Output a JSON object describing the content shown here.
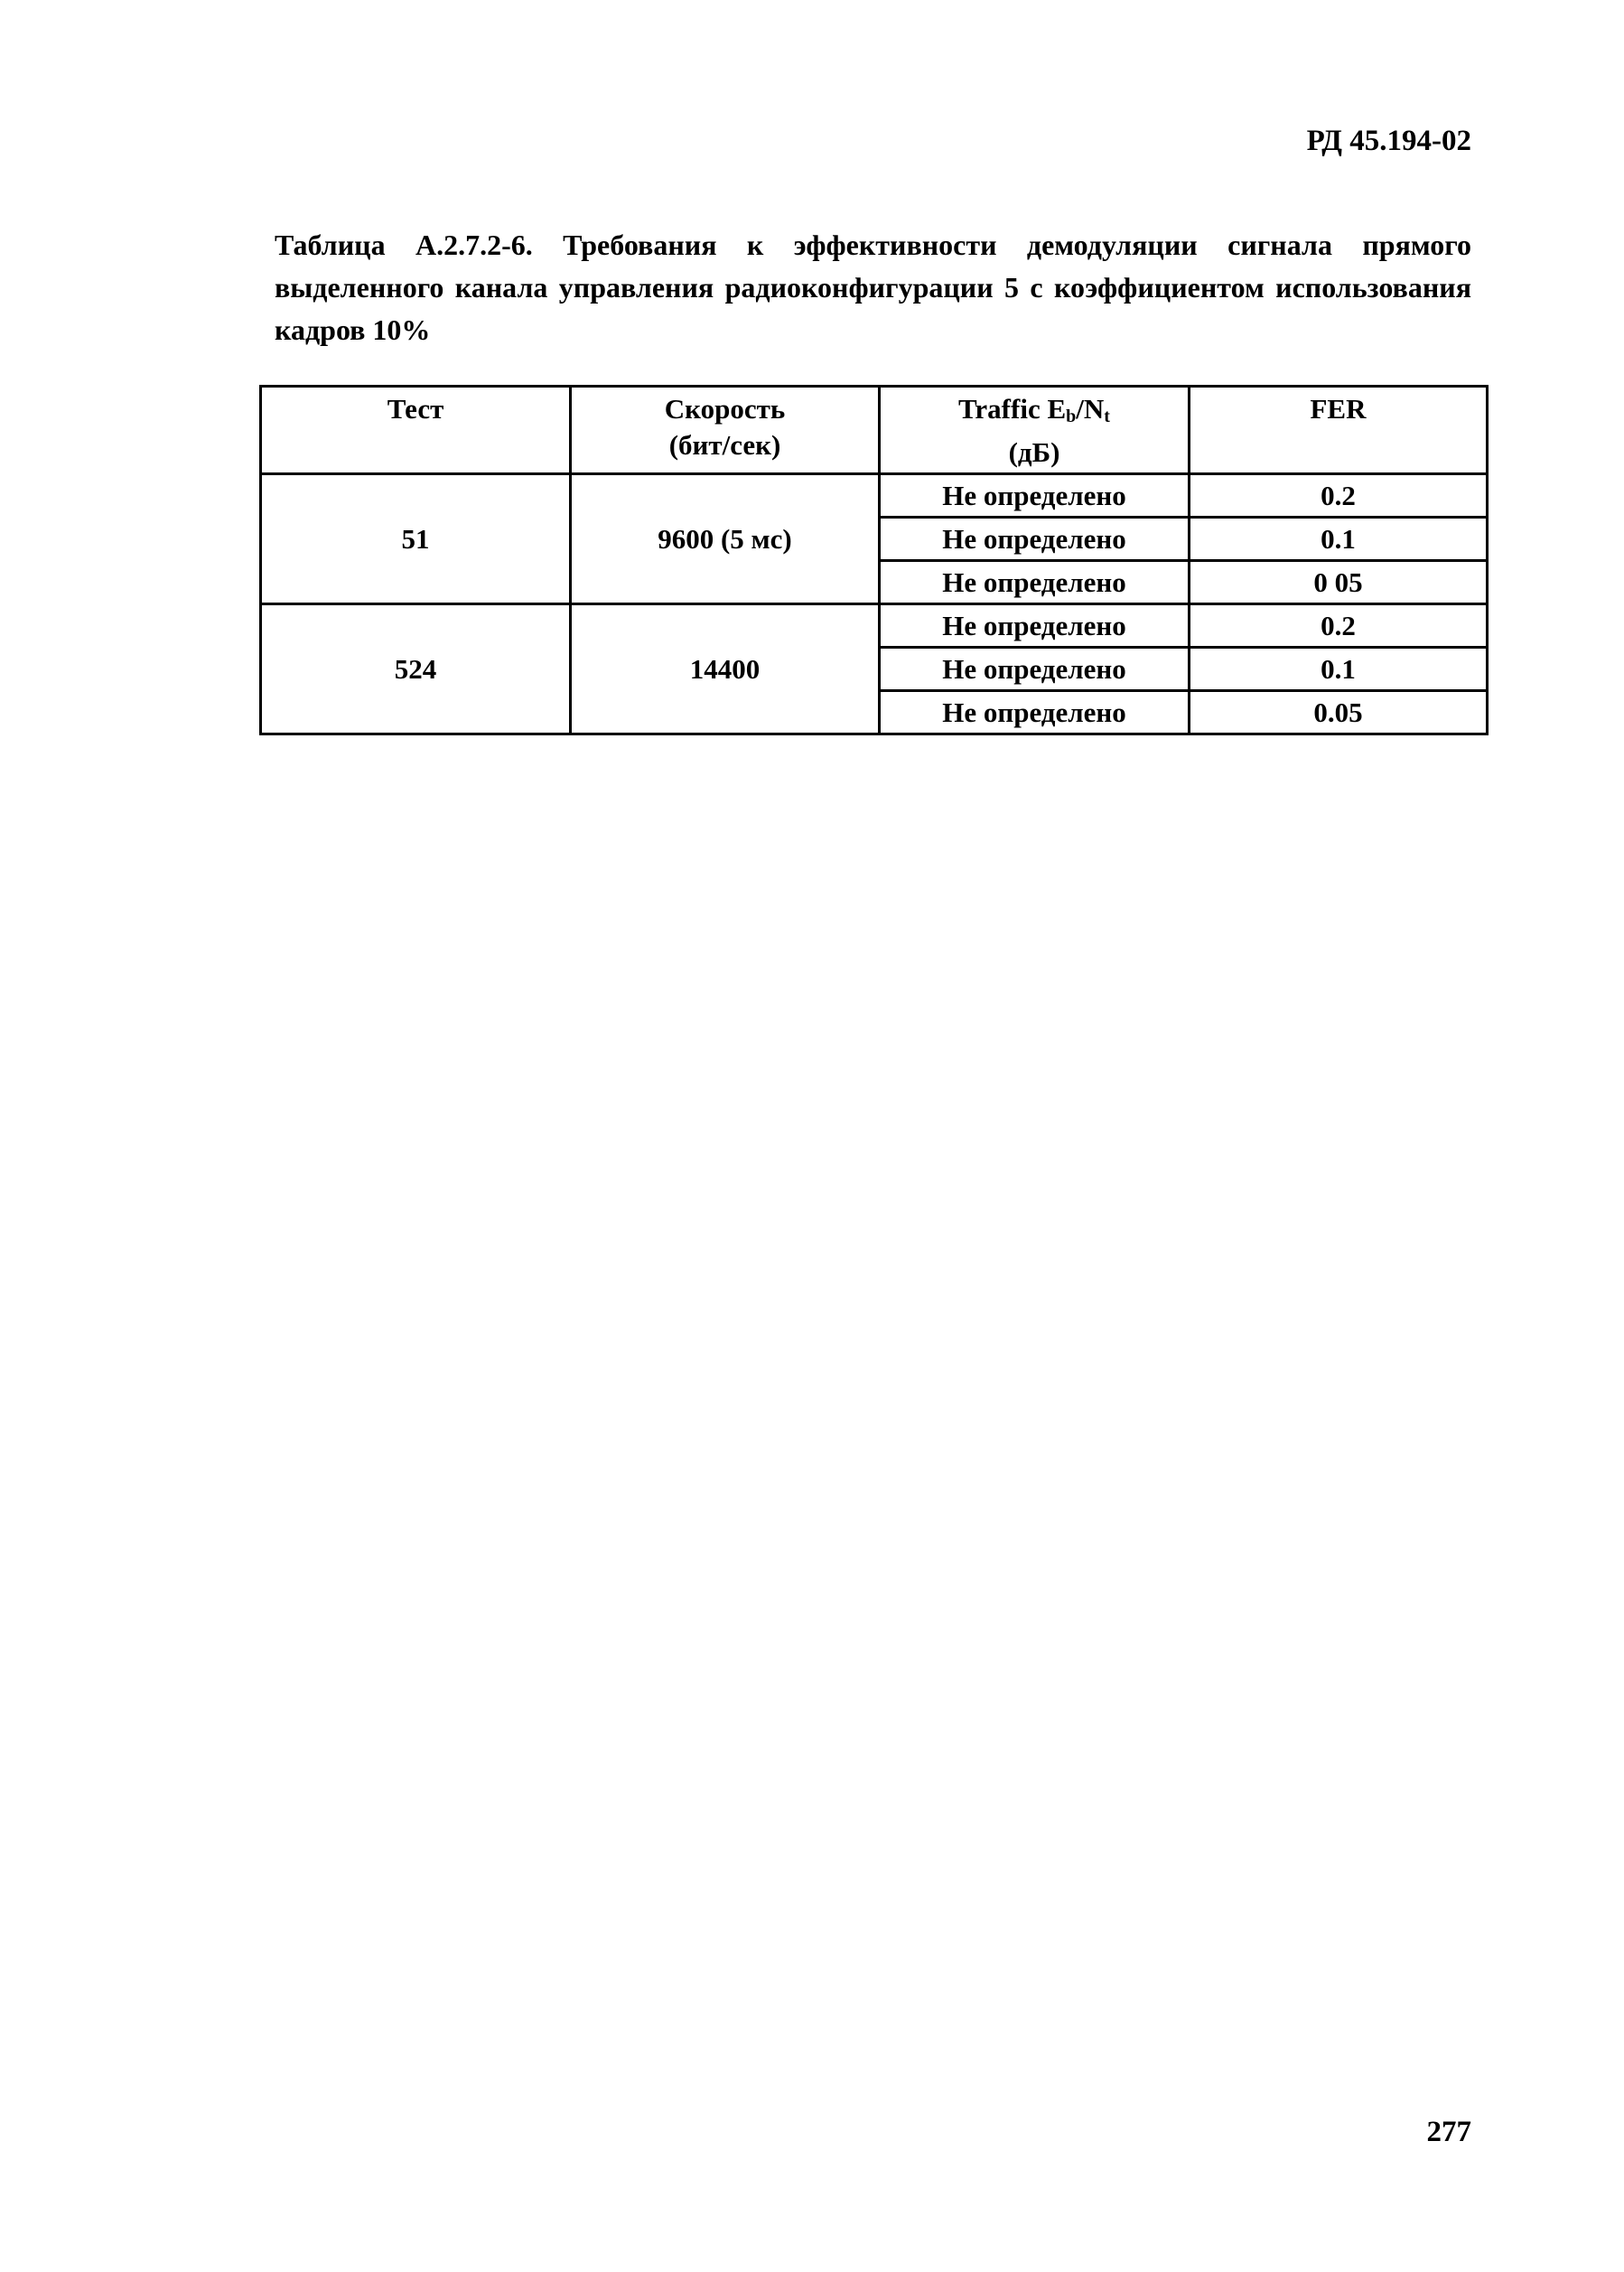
{
  "header": {
    "doc_code": "РД 45.194-02"
  },
  "caption": "Таблица А.2.7.2-6. Требования к эффективности демодуляции сигнала прямого выделенного канала управления радиоконфигурации 5 с коэффициентом использования кадров 10%",
  "table": {
    "headers": [
      "Тест",
      "Скорость (бит/сек)",
      "Traffic Eb/Nt (дБ)",
      "FER"
    ],
    "header_parts": {
      "speed_1": "Скорость",
      "speed_2": "(бит/сек)",
      "traffic_1": "Traffic E",
      "traffic_sub1": "b",
      "traffic_2": "/N",
      "traffic_sub2": "t",
      "traffic_3": "(дБ)"
    },
    "groups": [
      {
        "test": "51",
        "speed": "9600 (5 мс)",
        "rows": [
          {
            "ebnt": "Не определено",
            "fer": "0.2"
          },
          {
            "ebnt": "Не определено",
            "fer": "0.1"
          },
          {
            "ebnt": "Не определено",
            "fer": "0 05"
          }
        ]
      },
      {
        "test": "524",
        "speed": "14400",
        "rows": [
          {
            "ebnt": "Не определено",
            "fer": "0.2"
          },
          {
            "ebnt": "Не определено",
            "fer": "0.1"
          },
          {
            "ebnt": "Не определено",
            "fer": "0.05"
          }
        ]
      }
    ]
  },
  "page_number": "277"
}
